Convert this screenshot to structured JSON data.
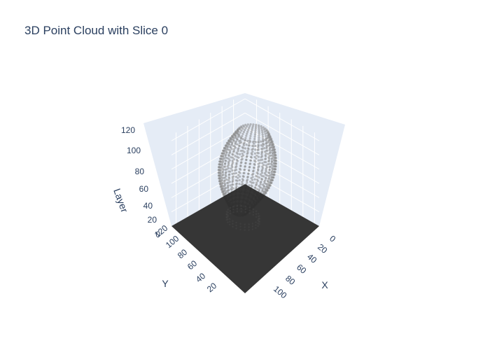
{
  "chart_data": {
    "type": "scatter3d",
    "title": "3D Point Cloud with Slice 0",
    "axes": {
      "x": {
        "title": "X",
        "ticks": [
          "0",
          "20",
          "40",
          "60",
          "80",
          "100"
        ],
        "range": [
          0,
          128
        ]
      },
      "y": {
        "title": "Y",
        "ticks": [
          "120",
          "100",
          "80",
          "60",
          "40",
          "20"
        ],
        "range": [
          0,
          128
        ]
      },
      "z": {
        "title": "Layer",
        "ticks": [
          "0",
          "20",
          "40",
          "60",
          "80",
          "100",
          "120"
        ],
        "range": [
          0,
          128
        ]
      }
    },
    "point_cloud": {
      "color": "#888888",
      "layer_range": [
        12,
        130
      ],
      "description_values": "stacked elliptical contour rings"
    },
    "slice": {
      "layer": 0,
      "color": "#2b2b2b",
      "x_range": [
        0,
        128
      ],
      "y_range": [
        0,
        128
      ]
    },
    "grid": true,
    "background_color": "#e5ecf6"
  }
}
